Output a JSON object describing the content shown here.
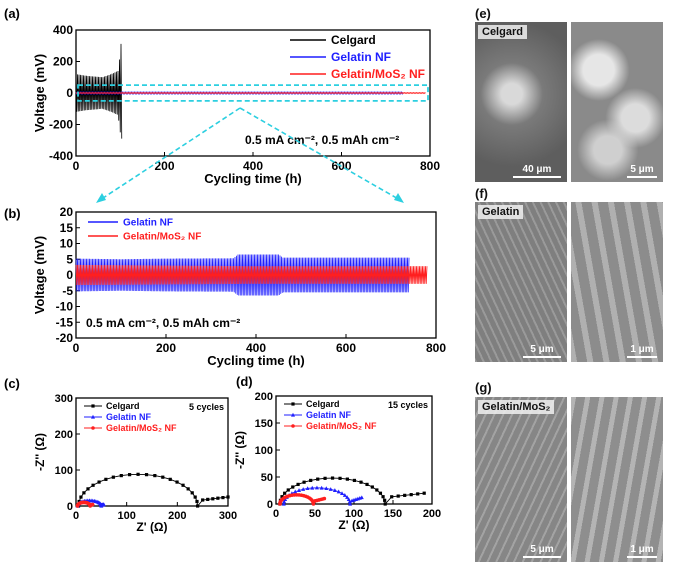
{
  "chart_data": [
    {
      "id": "a",
      "panel_label": "(a)",
      "type": "line",
      "xlabel": "Cycling time (h)",
      "ylabel": "Voltage (mV)",
      "xlim": [
        0,
        800
      ],
      "ylim": [
        -400,
        400
      ],
      "xticks": [
        "0",
        "200",
        "400",
        "600",
        "800"
      ],
      "yticks": [
        "400",
        "200",
        "0",
        "-200",
        "-400"
      ],
      "annotation": "0.5 mA cm⁻², 0.5 mAh cm⁻²",
      "legend_position": "top-right",
      "series": [
        {
          "name": "Celgard",
          "color": "#000000",
          "x_end": 105,
          "envelope": {
            "x": [
              0,
              20,
              40,
              60,
              80,
              95,
              100,
              103,
              105
            ],
            "amp": [
              120,
              110,
              105,
              100,
              120,
              140,
              250,
              360,
              0
            ]
          }
        },
        {
          "name": "Gelatin NF",
          "color": "#1f1fff",
          "x_end": 740,
          "envelope": {
            "x": [
              0,
              740
            ],
            "amp": [
              6,
              6
            ]
          }
        },
        {
          "name": "Gelatin/MoS₂ NF",
          "color": "#ff1f1f",
          "x_end": 790,
          "envelope": {
            "x": [
              0,
              790
            ],
            "amp": [
              3,
              3
            ]
          }
        }
      ]
    },
    {
      "id": "b",
      "panel_label": "(b)",
      "type": "line",
      "xlabel": "Cycling time (h)",
      "ylabel": "Voltage (mV)",
      "xlim": [
        0,
        800
      ],
      "ylim": [
        -20,
        20
      ],
      "xticks": [
        "0",
        "200",
        "400",
        "600",
        "800"
      ],
      "yticks": [
        "20",
        "15",
        "10",
        "5",
        "0",
        "-5",
        "-10",
        "-15",
        "-20"
      ],
      "annotation": "0.5 mA cm⁻², 0.5 mAh cm⁻²",
      "legend_position": "top-left",
      "series": [
        {
          "name": "Gelatin NF",
          "color": "#1f1fff",
          "envelope": {
            "x": [
              0,
              100,
              200,
              350,
              360,
              450,
              460,
              600,
              740
            ],
            "amp": [
              5.2,
              5.0,
              5.2,
              5.3,
              6.5,
              6.5,
              5.5,
              5.5,
              5.5
            ]
          }
        },
        {
          "name": "Gelatin/MoS₂ NF",
          "color": "#ff1f1f",
          "envelope": {
            "x": [
              0,
              200,
              400,
              600,
              780
            ],
            "amp": [
              3.2,
              3.0,
              2.8,
              2.8,
              2.8
            ]
          }
        }
      ]
    },
    {
      "id": "c",
      "panel_label": "(c)",
      "type": "scatter",
      "xlabel": "Z' (Ω)",
      "ylabel": "-Z'' (Ω)",
      "xlim": [
        0,
        300
      ],
      "ylim": [
        0,
        300
      ],
      "xticks": [
        "0",
        "100",
        "200",
        "300"
      ],
      "yticks": [
        "300",
        "200",
        "100",
        "0"
      ],
      "annotation": "5 cycles",
      "legend_position": "top-left",
      "series": [
        {
          "name": "Celgard",
          "color": "#000000",
          "marker": "square",
          "arc": [
            5,
            240,
            88
          ],
          "tail": [
            [
              240,
              15
            ],
            [
              300,
              25
            ]
          ]
        },
        {
          "name": "Gelatin NF",
          "color": "#1f1fff",
          "marker": "triangle",
          "arc": [
            3,
            50,
            15
          ],
          "tail": [
            [
              50,
              3
            ],
            [
              55,
              4
            ]
          ]
        },
        {
          "name": "Gelatin/MoS₂ NF",
          "color": "#ff1f1f",
          "marker": "circle",
          "arc": [
            3,
            28,
            10
          ],
          "tail": [
            [
              28,
              3
            ],
            [
              33,
              4
            ]
          ]
        }
      ]
    },
    {
      "id": "d",
      "panel_label": "(d)",
      "type": "scatter",
      "xlabel": "Z' (Ω)",
      "ylabel": "-Z'' (Ω)",
      "xlim": [
        0,
        200
      ],
      "ylim": [
        0,
        200
      ],
      "xticks": [
        "0",
        "50",
        "100",
        "150",
        "200"
      ],
      "yticks": [
        "200",
        "150",
        "100",
        "50",
        "0"
      ],
      "annotation": "15 cycles",
      "legend_position": "top-left",
      "series": [
        {
          "name": "Celgard",
          "color": "#000000",
          "marker": "square",
          "arc": [
            5,
            140,
            48
          ],
          "tail": [
            [
              140,
              12
            ],
            [
              190,
              20
            ]
          ]
        },
        {
          "name": "Gelatin NF",
          "color": "#1f1fff",
          "marker": "triangle",
          "arc": [
            10,
            95,
            30
          ],
          "tail": [
            [
              95,
              5
            ],
            [
              110,
              12
            ]
          ]
        },
        {
          "name": "Gelatin/MoS₂ NF",
          "color": "#ff1f1f",
          "marker": "circle",
          "arc": [
            5,
            48,
            17
          ],
          "tail": [
            [
              48,
              5
            ],
            [
              62,
              10
            ]
          ]
        }
      ]
    }
  ],
  "sem": [
    {
      "panel_label": "(e)",
      "tag": "Celgard",
      "left_scale": "40 μm",
      "right_scale": "5 μm"
    },
    {
      "panel_label": "(f)",
      "tag": "Gelatin",
      "left_scale": "5 μm",
      "right_scale": "1 μm"
    },
    {
      "panel_label": "(g)",
      "tag": "Gelatin/MoS₂",
      "left_scale": "5 μm",
      "right_scale": "1 μm"
    }
  ]
}
